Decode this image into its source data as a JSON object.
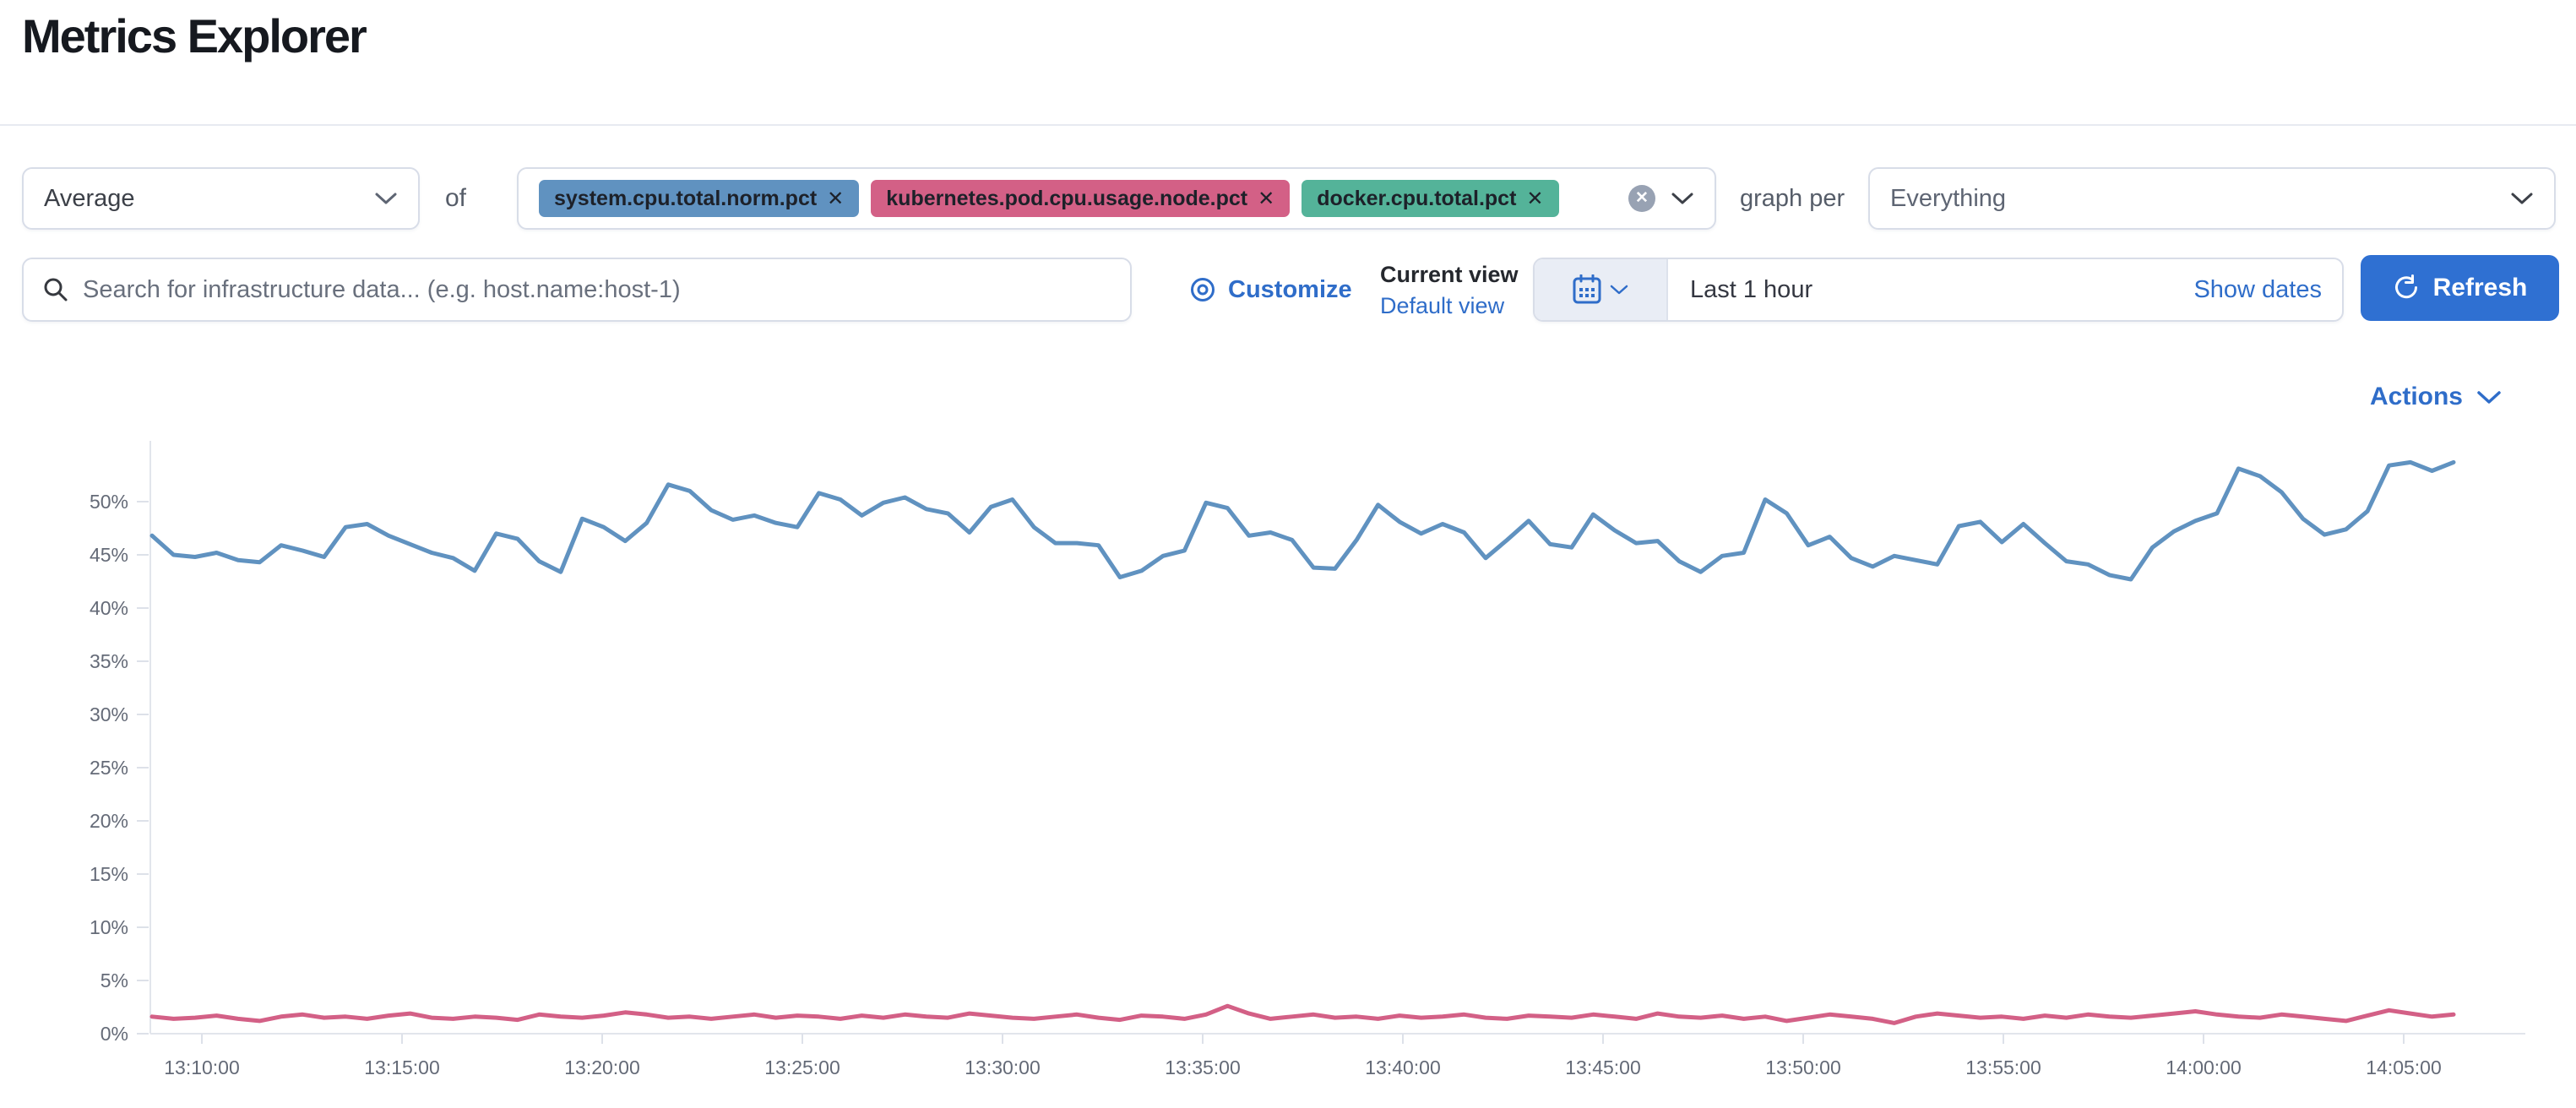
{
  "page": {
    "title": "Metrics Explorer"
  },
  "toolbar": {
    "aggregation": {
      "value": "Average"
    },
    "of_label": "of",
    "metrics": [
      {
        "label": "system.cpu.total.norm.pct",
        "color": "#6092C0"
      },
      {
        "label": "kubernetes.pod.cpu.usage.node.pct",
        "color": "#D36086"
      },
      {
        "label": "docker.cpu.total.pct",
        "color": "#54B399"
      }
    ],
    "remove_icon": "✕",
    "clear_icon": "✕",
    "graph_per_label": "graph per",
    "group_by": {
      "value": "Everything"
    }
  },
  "searchbar": {
    "placeholder": "Search for infrastructure data... (e.g. host.name:host-1)",
    "customize_label": "Customize",
    "current_view_label": "Current view",
    "view_name": "Default view",
    "time_range": "Last 1 hour",
    "show_dates_label": "Show dates",
    "refresh_label": "Refresh"
  },
  "actions_label": "Actions",
  "chart_data": {
    "type": "line",
    "title": "",
    "xlabel": "",
    "ylabel": "",
    "unit": "%",
    "grid": false,
    "legend": "none",
    "ylim": [
      0,
      55
    ],
    "y_tick_labels": [
      "0%",
      "5%",
      "10%",
      "15%",
      "20%",
      "25%",
      "30%",
      "35%",
      "40%",
      "45%",
      "50%"
    ],
    "x_tick_labels": [
      "13:10:00",
      "13:15:00",
      "13:20:00",
      "13:25:00",
      "13:30:00",
      "13:35:00",
      "13:40:00",
      "13:45:00",
      "13:50:00",
      "13:55:00",
      "14:00:00",
      "14:05:00"
    ],
    "x_start": "13:09:00",
    "x_end": "14:06:00",
    "x_interval_seconds": 30,
    "series": [
      {
        "name": "avg of system.cpu.total.norm.pct",
        "color": "#6092C0",
        "values": [
          46.8,
          45.0,
          44.8,
          45.2,
          44.5,
          44.3,
          45.9,
          45.4,
          44.8,
          47.6,
          47.9,
          46.8,
          46.0,
          45.2,
          44.7,
          43.5,
          47.0,
          46.5,
          44.4,
          43.4,
          48.4,
          47.6,
          46.3,
          48.0,
          51.6,
          51.0,
          49.2,
          48.3,
          48.7,
          48.0,
          47.6,
          50.8,
          50.2,
          48.7,
          49.9,
          50.4,
          49.3,
          48.9,
          47.1,
          49.5,
          50.2,
          47.6,
          46.1,
          46.1,
          45.9,
          42.9,
          43.5,
          44.9,
          45.4,
          49.9,
          49.4,
          46.8,
          47.1,
          46.4,
          43.8,
          43.7,
          46.4,
          49.7,
          48.1,
          47.0,
          47.9,
          47.1,
          44.7,
          46.4,
          48.2,
          46.0,
          45.7,
          48.8,
          47.3,
          46.1,
          46.3,
          44.4,
          43.4,
          44.9,
          45.2,
          50.2,
          48.9,
          45.9,
          46.7,
          44.7,
          43.9,
          44.9,
          44.5,
          44.1,
          47.7,
          48.1,
          46.2,
          47.9,
          46.1,
          44.4,
          44.1,
          43.1,
          42.7,
          45.7,
          47.2,
          48.2,
          48.9,
          53.1,
          52.4,
          50.9,
          48.4,
          46.9,
          47.4,
          49.1,
          53.4,
          53.7,
          52.9,
          53.7
        ]
      },
      {
        "name": "avg of kubernetes.pod.cpu.usage.node.pct",
        "color": "#D36086",
        "values": [
          1.6,
          1.4,
          1.5,
          1.7,
          1.4,
          1.2,
          1.6,
          1.8,
          1.5,
          1.6,
          1.4,
          1.7,
          1.9,
          1.5,
          1.4,
          1.6,
          1.5,
          1.3,
          1.8,
          1.6,
          1.5,
          1.7,
          2.0,
          1.8,
          1.5,
          1.6,
          1.4,
          1.6,
          1.8,
          1.5,
          1.7,
          1.6,
          1.4,
          1.7,
          1.5,
          1.8,
          1.6,
          1.5,
          1.9,
          1.7,
          1.5,
          1.4,
          1.6,
          1.8,
          1.5,
          1.3,
          1.7,
          1.6,
          1.4,
          1.8,
          2.6,
          1.9,
          1.4,
          1.6,
          1.8,
          1.5,
          1.6,
          1.4,
          1.7,
          1.5,
          1.6,
          1.8,
          1.5,
          1.4,
          1.7,
          1.6,
          1.5,
          1.8,
          1.6,
          1.4,
          1.9,
          1.6,
          1.5,
          1.7,
          1.4,
          1.6,
          1.2,
          1.5,
          1.8,
          1.6,
          1.4,
          1.0,
          1.6,
          1.9,
          1.7,
          1.5,
          1.6,
          1.4,
          1.7,
          1.5,
          1.8,
          1.6,
          1.5,
          1.7,
          1.9,
          2.1,
          1.8,
          1.6,
          1.5,
          1.8,
          1.6,
          1.4,
          1.2,
          1.7,
          2.2,
          1.9,
          1.6,
          1.8
        ]
      }
    ]
  }
}
